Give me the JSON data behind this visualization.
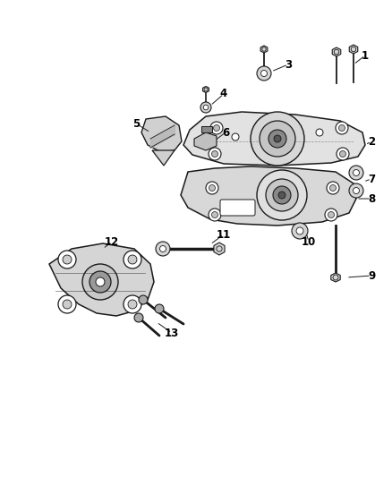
{
  "background_color": "#ffffff",
  "line_color": "#1a1a1a",
  "figsize": [
    4.38,
    5.33
  ],
  "dpi": 100,
  "parts": {
    "plate": {
      "facecolor": "#e8e8e8",
      "edgecolor": "#1a1a1a"
    },
    "bracket": {
      "facecolor": "#d8d8d8",
      "edgecolor": "#1a1a1a"
    },
    "dark": "#555555",
    "medium": "#999999",
    "light": "#cccccc",
    "rubber": "#888888"
  }
}
